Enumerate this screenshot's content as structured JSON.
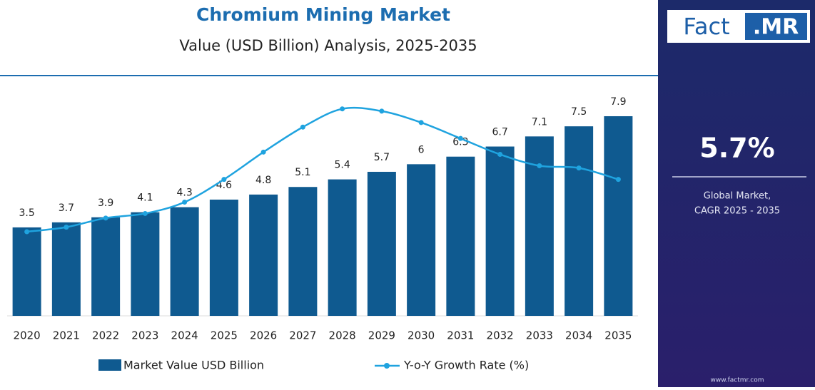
{
  "chart_data": {
    "type": "bar-line",
    "title": "Chromium Mining Market",
    "subtitle": "Value (USD Billion) Analysis, 2025-2035",
    "categories": [
      "2020",
      "2021",
      "2022",
      "2023",
      "2024",
      "2025",
      "2026",
      "2027",
      "2028",
      "2029",
      "2030",
      "2031",
      "2032",
      "2033",
      "2034",
      "2035"
    ],
    "series": [
      {
        "name": "Market Value USD Billion",
        "color": "#0f5a90",
        "values": [
          3.5,
          3.7,
          3.9,
          4.1,
          4.3,
          4.6,
          4.8,
          5.1,
          5.4,
          5.7,
          6.0,
          6.3,
          6.7,
          7.1,
          7.5,
          7.9
        ]
      },
      {
        "name": "Y-o-Y Growth Rate (%)",
        "color": "#1fa3df",
        "axis": "y2",
        "values": [
          3.7,
          3.9,
          4.3,
          4.5,
          5.0,
          6.0,
          7.2,
          8.3,
          9.1,
          9.0,
          8.5,
          7.8,
          7.1,
          6.6,
          6.5,
          6.0
        ]
      }
    ],
    "ylim": [
      0,
      9
    ],
    "y2lim": [
      0,
      10
    ]
  },
  "sidebar": {
    "logo_left": "Fact",
    "logo_right": ".MR",
    "cagr": "5.7%",
    "caption_1": "Global Market,",
    "caption_2": "CAGR 2025 - 2035",
    "url": "www.factmr.com"
  }
}
